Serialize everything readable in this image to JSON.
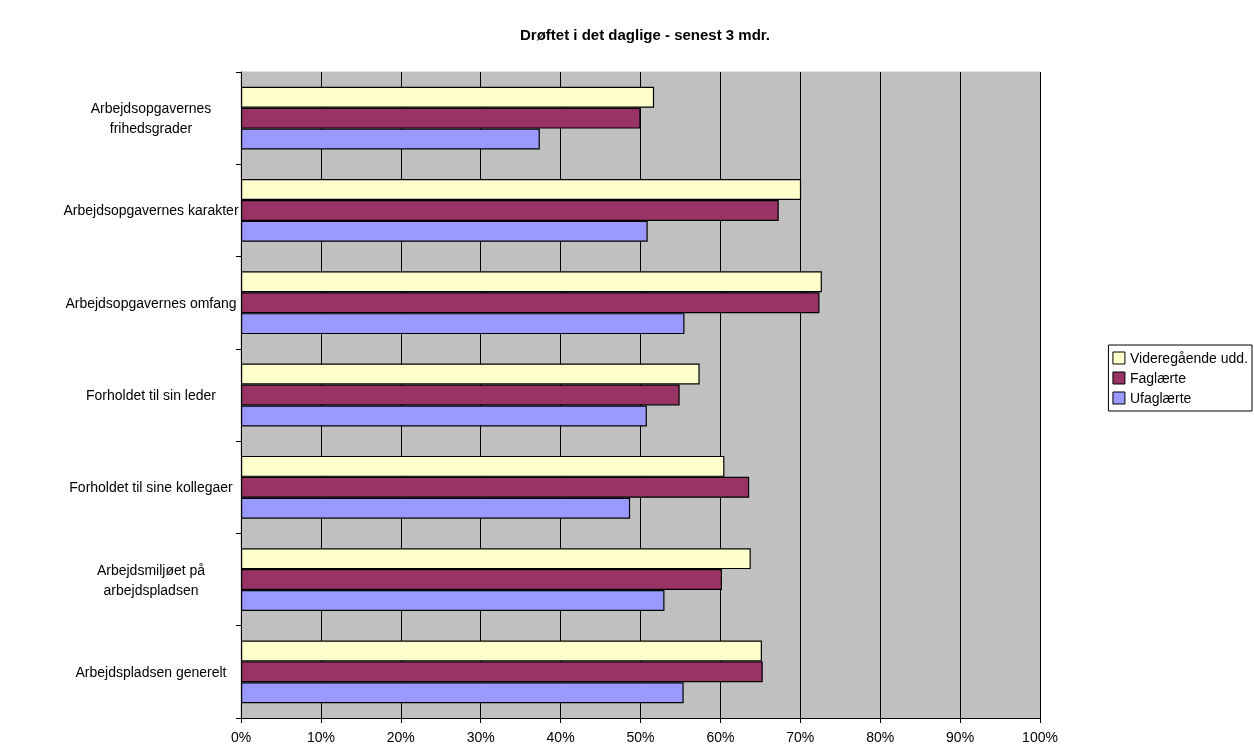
{
  "chart_data": {
    "type": "bar",
    "orientation": "horizontal",
    "title": "Drøftet i det daglige - senest 3 mdr.",
    "categories": [
      "Arbejdsopgavernes\nfrihedsgrader",
      "Arbejdsopgavernes karakter",
      "Arbejdsopgavernes omfang",
      "Forholdet til sin leder",
      "Forholdet til sine kollegaer",
      "Arbejdsmiljøet på\narbejdspladsen",
      "Arbejdspladsen generelt"
    ],
    "series": [
      {
        "name": "Videregående udd.",
        "color": "#ffffcc",
        "values": [
          51.7,
          70.1,
          72.7,
          57.4,
          60.5,
          63.8,
          65.2
        ]
      },
      {
        "name": "Faglærte",
        "color": "#993366",
        "values": [
          50.0,
          67.3,
          72.4,
          54.9,
          63.6,
          60.2,
          65.3
        ]
      },
      {
        "name": "Ufaglærte",
        "color": "#9999ff",
        "values": [
          37.4,
          50.9,
          55.5,
          50.8,
          48.7,
          53.0,
          55.4
        ]
      }
    ],
    "xlim": [
      0,
      100
    ],
    "xticks": [
      {
        "value": 0,
        "label": "0%"
      },
      {
        "value": 10,
        "label": "10%"
      },
      {
        "value": 20,
        "label": "20%"
      },
      {
        "value": 30,
        "label": "30%"
      },
      {
        "value": 40,
        "label": "40%"
      },
      {
        "value": 50,
        "label": "50%"
      },
      {
        "value": 60,
        "label": "60%"
      },
      {
        "value": 70,
        "label": "70%"
      },
      {
        "value": 80,
        "label": "80%"
      },
      {
        "value": 90,
        "label": "90%"
      },
      {
        "value": 100,
        "label": "100%"
      }
    ],
    "grid": "x",
    "legend": "right"
  }
}
